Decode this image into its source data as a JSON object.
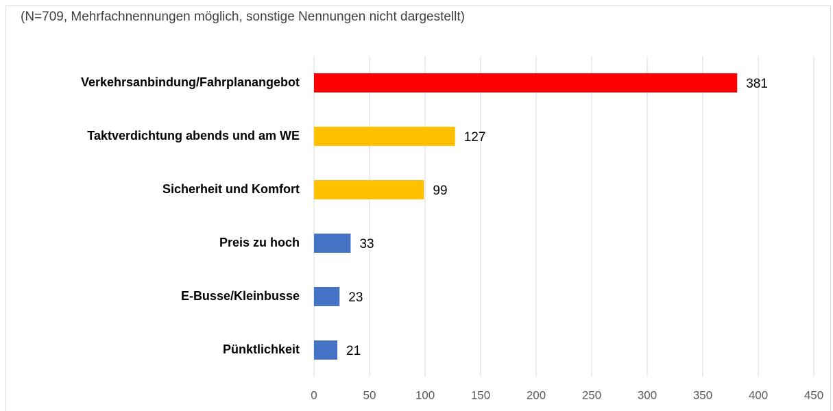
{
  "chart_data": {
    "type": "bar",
    "orientation": "horizontal",
    "subtitle": "(N=709,  Mehrfachnennungen  möglich, sonstige Nennungen  nicht dargestellt)",
    "categories": [
      "Verkehrsanbindung/Fahrplanangebot",
      "Taktverdichtung abends und am WE",
      "Sicherheit und Komfort",
      "Preis zu hoch",
      "E-Busse/Kleinbusse",
      "Pünktlichkeit"
    ],
    "values": [
      381,
      127,
      99,
      33,
      23,
      21
    ],
    "colors": [
      "#ff0000",
      "#ffc000",
      "#ffc000",
      "#4472c4",
      "#4472c4",
      "#4472c4"
    ],
    "xlim": [
      0,
      450
    ],
    "xticks": [
      0,
      50,
      100,
      150,
      200,
      250,
      300,
      350,
      400,
      450
    ],
    "grid": true
  }
}
